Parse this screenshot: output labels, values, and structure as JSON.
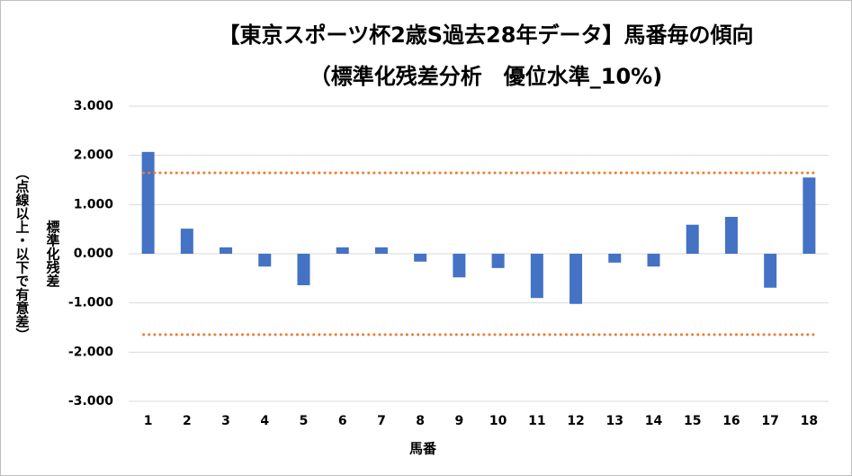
{
  "chart_data": {
    "type": "bar",
    "title": "【東京スポーツ杯2歳S過去28年データ】馬番毎の傾向",
    "subtitle": "（標準化残差分析　優位水準_10%)",
    "y_axis_label": "標準化残差",
    "y_axis_note": "（点線以上・以下で有意差）",
    "x_axis_label": "馬番",
    "categories": [
      "1",
      "2",
      "3",
      "4",
      "5",
      "6",
      "7",
      "8",
      "9",
      "10",
      "11",
      "12",
      "13",
      "14",
      "15",
      "16",
      "17",
      "18"
    ],
    "values": [
      2.07,
      0.51,
      0.13,
      -0.26,
      -0.64,
      0.13,
      0.13,
      -0.16,
      -0.48,
      -0.29,
      -0.9,
      -1.02,
      -0.18,
      -0.26,
      0.59,
      0.75,
      -0.69,
      1.55
    ],
    "color": "#4472c4",
    "reference_lines": [
      1.645,
      -1.645
    ],
    "reference_color": "#ed7d31",
    "ylim": [
      -3,
      3
    ],
    "yticks": [
      {
        "value": 3,
        "label": "3.000"
      },
      {
        "value": 2,
        "label": "2.000"
      },
      {
        "value": 1,
        "label": "1.000"
      },
      {
        "value": 0,
        "label": "0.000"
      },
      {
        "value": -1,
        "label": "-1.000"
      },
      {
        "value": -2,
        "label": "-2.000"
      },
      {
        "value": -3,
        "label": "-3.000"
      }
    ],
    "grid": true
  }
}
